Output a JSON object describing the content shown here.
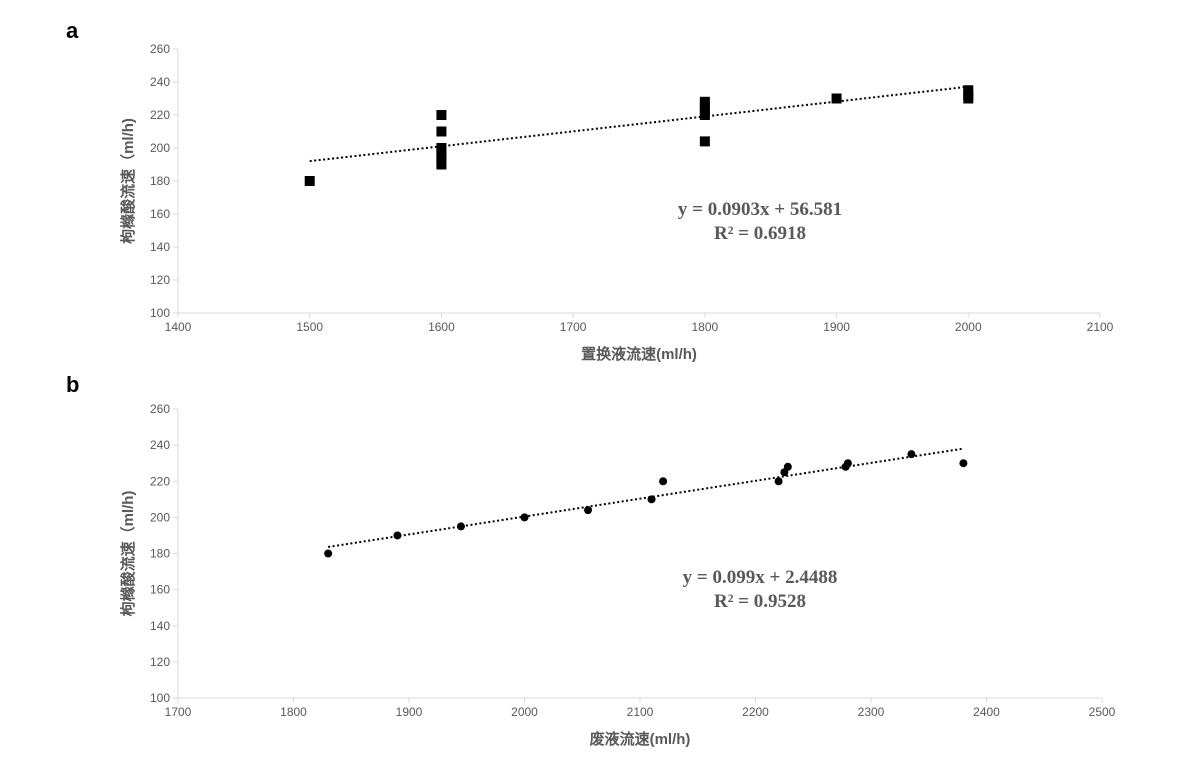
{
  "chart_data": [
    {
      "panel": "a",
      "type": "scatter",
      "marker": "square",
      "xlabel": "置换液流速(ml/h)",
      "ylabel": "枸橼酸流速（ml/h)",
      "xlim": [
        1400,
        2100
      ],
      "ylim": [
        100,
        260
      ],
      "xticks": [
        1400,
        1500,
        1600,
        1700,
        1800,
        1900,
        2000,
        2100
      ],
      "yticks": [
        100,
        120,
        140,
        160,
        180,
        200,
        220,
        240,
        260
      ],
      "points": [
        [
          1500,
          180
        ],
        [
          1600,
          220
        ],
        [
          1600,
          210
        ],
        [
          1600,
          200
        ],
        [
          1600,
          198
        ],
        [
          1600,
          195
        ],
        [
          1600,
          192
        ],
        [
          1600,
          190
        ],
        [
          1800,
          228
        ],
        [
          1800,
          225
        ],
        [
          1800,
          222
        ],
        [
          1800,
          220
        ],
        [
          1800,
          204
        ],
        [
          1900,
          230
        ],
        [
          2000,
          235
        ],
        [
          2000,
          232
        ],
        [
          2000,
          230
        ]
      ],
      "trendline": {
        "slope": 0.0903,
        "intercept": 56.581,
        "x_range": [
          1500,
          2000
        ],
        "style": "dotted"
      },
      "equation": "y = 0.0903x + 56.581",
      "r2": "R² = 0.6918"
    },
    {
      "panel": "b",
      "type": "scatter",
      "marker": "circle",
      "xlabel": "废液流速(ml/h)",
      "ylabel": "枸橼酸流速（ml/h)",
      "xlim": [
        1700,
        2500
      ],
      "ylim": [
        100,
        260
      ],
      "xticks": [
        1700,
        1800,
        1900,
        2000,
        2100,
        2200,
        2300,
        2400,
        2500
      ],
      "yticks": [
        100,
        120,
        140,
        160,
        180,
        200,
        220,
        240,
        260
      ],
      "points": [
        [
          1830,
          180
        ],
        [
          1890,
          190
        ],
        [
          1945,
          195
        ],
        [
          2000,
          200
        ],
        [
          2055,
          204
        ],
        [
          2110,
          210
        ],
        [
          2120,
          220
        ],
        [
          2220,
          220
        ],
        [
          2225,
          225
        ],
        [
          2228,
          228
        ],
        [
          2278,
          228
        ],
        [
          2280,
          230
        ],
        [
          2335,
          235
        ],
        [
          2380,
          230
        ]
      ],
      "trendline": {
        "slope": 0.099,
        "intercept": 2.4488,
        "x_range": [
          1830,
          2380
        ],
        "style": "dotted"
      },
      "equation": "y = 0.099x + 2.4488",
      "r2": "R² = 0.9528"
    }
  ],
  "colors": {
    "axis": "#d9d9d9",
    "text": "#595959",
    "marker": "#000000"
  }
}
